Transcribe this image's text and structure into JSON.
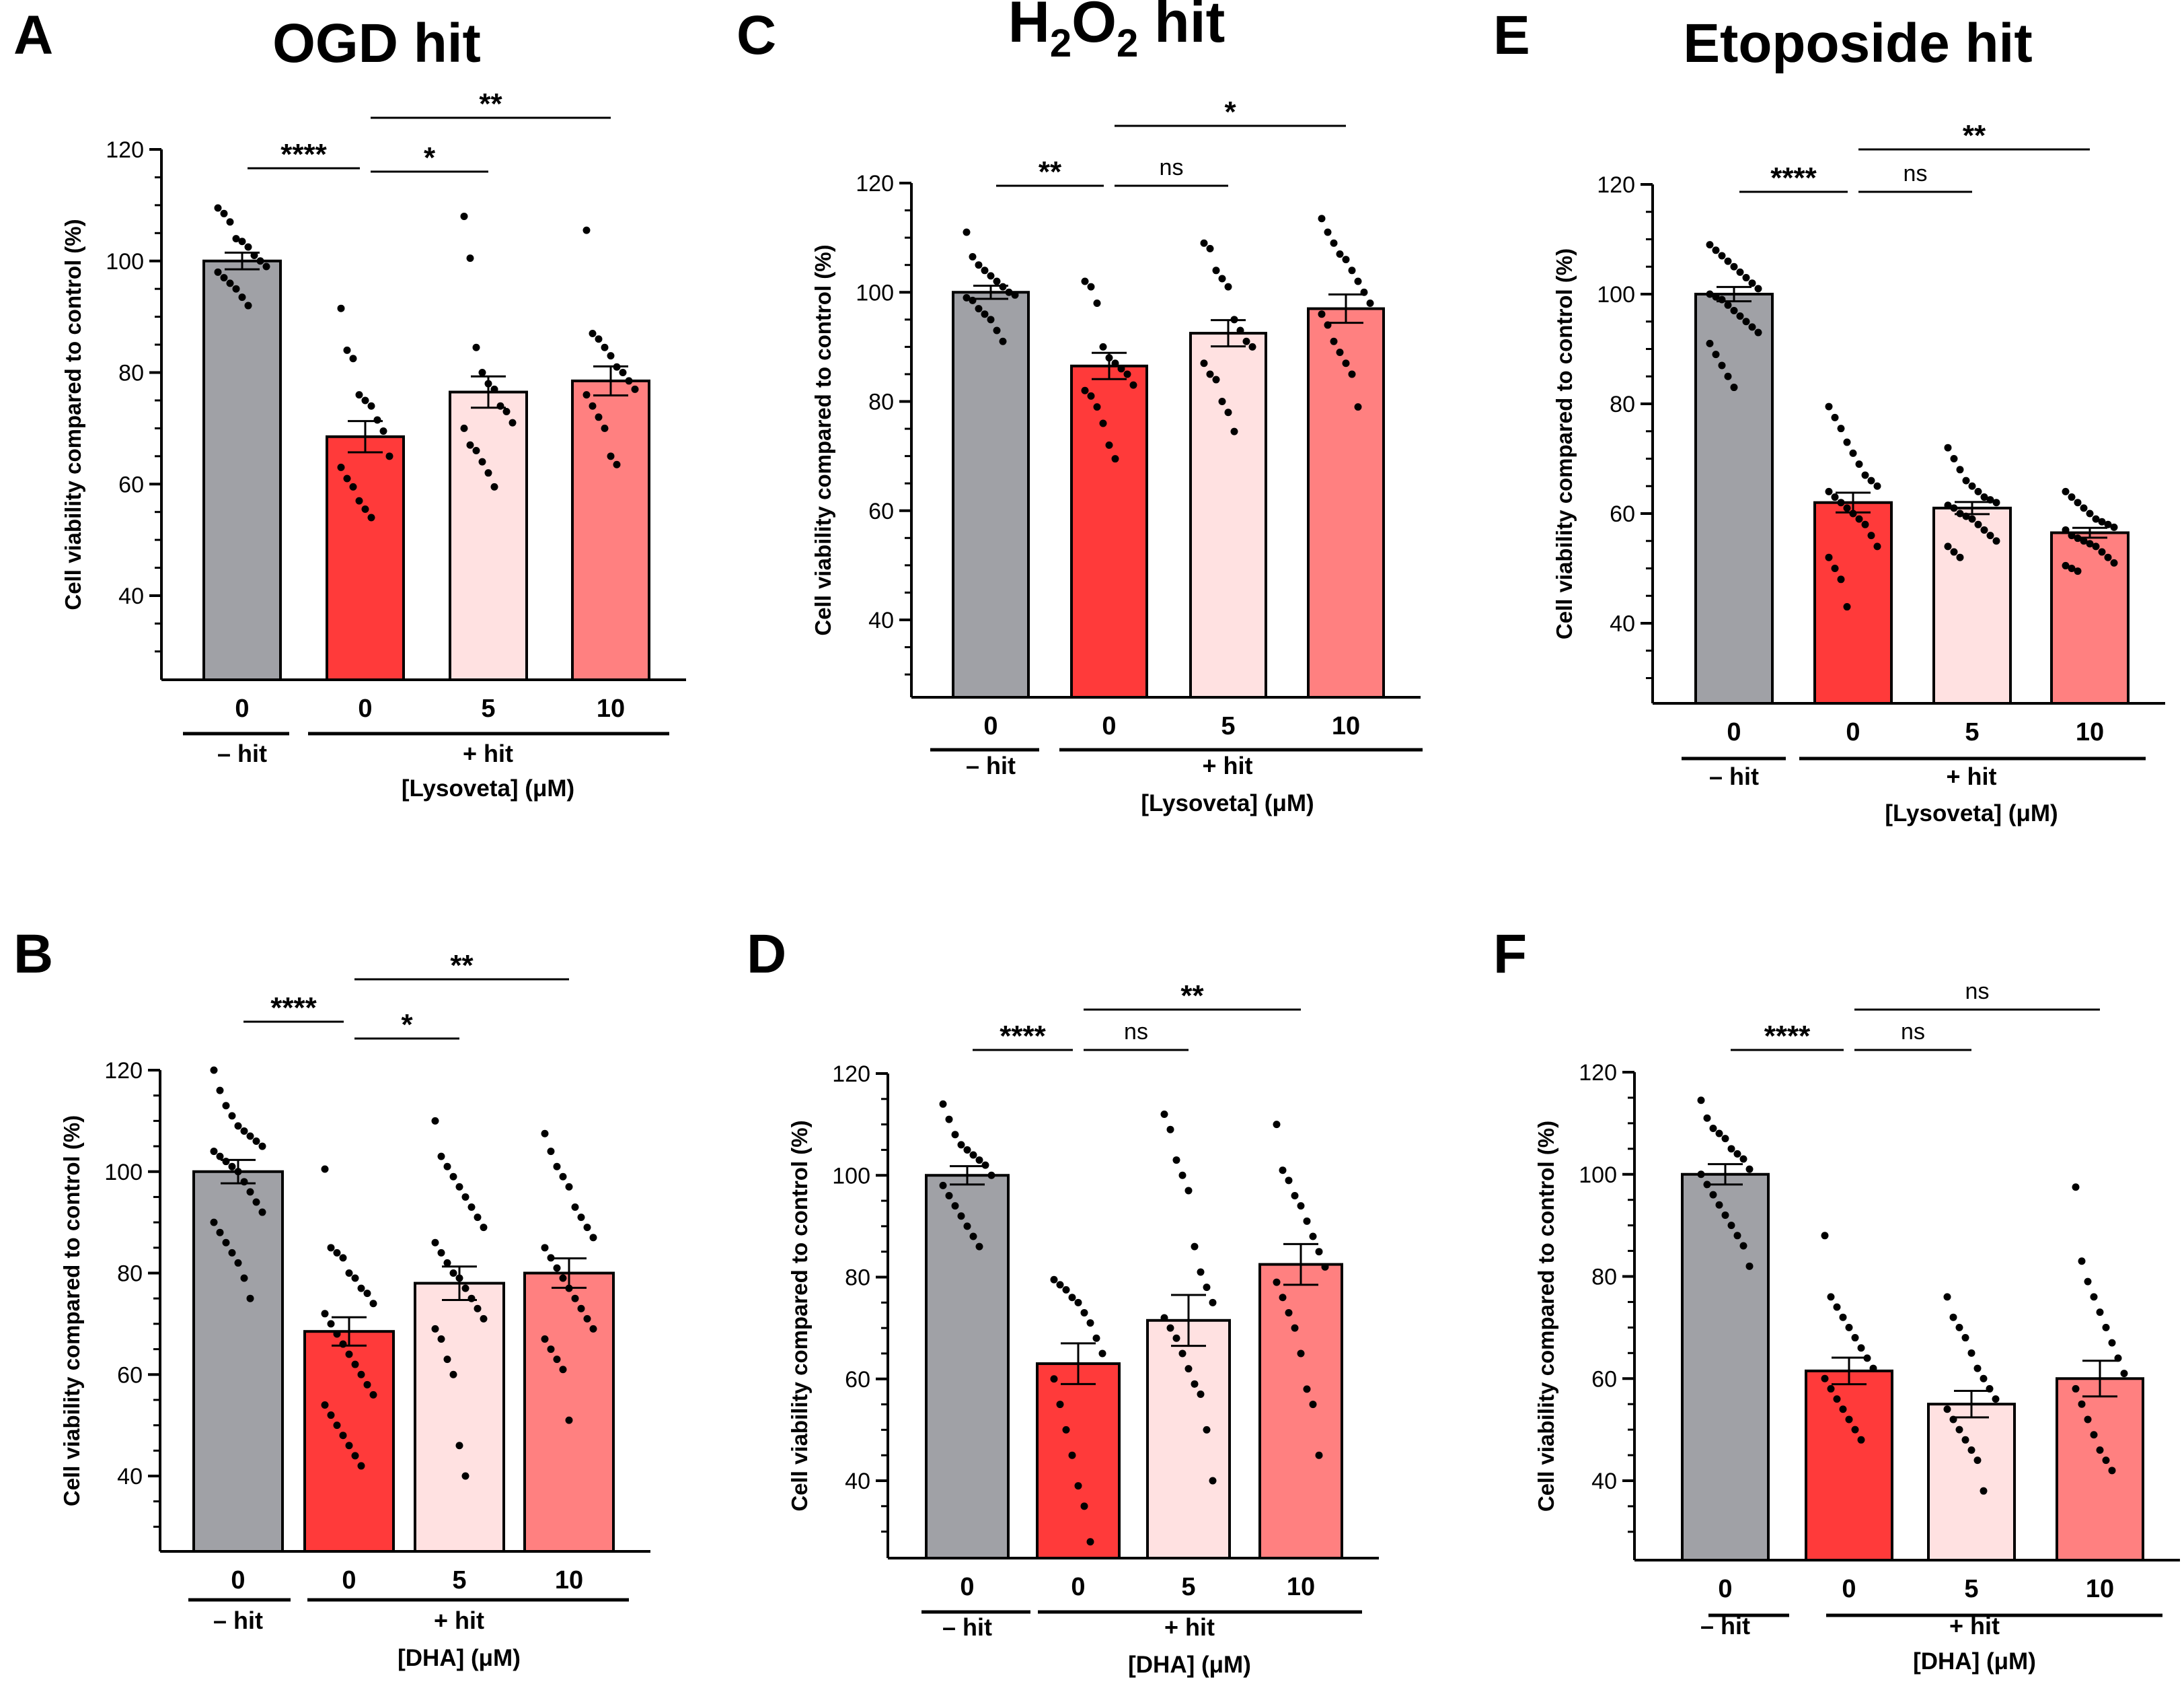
{
  "colors": {
    "control_bar": "#a0a1a6",
    "hit_bar": "#ff3a3a",
    "low_dose_bar": "#ffe1e1",
    "high_dose_bar": "#ff8080",
    "axis": "#000000"
  },
  "chart_data": [
    {
      "panel": "A",
      "type": "bar",
      "title": "OGD hit",
      "title_html": false,
      "ylabel": "Cell viability compared to control (%)",
      "ylim": [
        25,
        120
      ],
      "yticks": [
        40,
        60,
        80,
        100,
        120
      ],
      "categories": [
        "0",
        "0",
        "5",
        "10"
      ],
      "values": [
        100,
        68.5,
        76.5,
        78.5
      ],
      "sem": [
        1.5,
        2.8,
        2.8,
        2.6
      ],
      "points": [
        [
          109.5,
          108.5,
          107,
          104,
          103.5,
          102.5,
          101,
          100,
          99,
          98,
          97,
          96,
          95,
          93.5,
          92
        ],
        [
          91.5,
          84,
          82.5,
          76,
          75,
          74,
          71.5,
          69.5,
          65,
          63,
          61,
          59.5,
          57,
          55.5,
          54
        ],
        [
          108,
          100.5,
          84.5,
          80,
          78,
          77,
          74,
          73,
          71,
          70,
          67,
          66,
          64,
          62,
          59.5
        ],
        [
          105.5,
          87,
          86,
          84.5,
          83,
          81,
          80,
          78.5,
          77,
          76,
          74,
          72,
          70,
          65,
          63.5
        ]
      ],
      "group_labels": [
        "– hit",
        "+ hit"
      ],
      "xlabel": "[Lysoveta] (μM)",
      "comparisons": [
        {
          "from": 0,
          "to": 1,
          "label": "****"
        },
        {
          "from": 1,
          "to": 2,
          "label": "*"
        },
        {
          "from": 1,
          "to": 3,
          "label": "**"
        }
      ]
    },
    {
      "panel": "C",
      "type": "bar",
      "title": "H2O2 hit",
      "title_html": true,
      "ylabel": "Cell viability compared to control (%)",
      "ylim": [
        25,
        120
      ],
      "yticks": [
        40,
        60,
        80,
        100,
        120
      ],
      "categories": [
        "0",
        "0",
        "5",
        "10"
      ],
      "values": [
        100,
        86.5,
        92.5,
        97
      ],
      "sem": [
        1.2,
        2.4,
        2.4,
        2.6
      ],
      "points": [
        [
          111,
          106.5,
          105,
          104,
          103,
          102,
          101,
          100,
          99.5,
          99,
          98.5,
          97,
          96,
          95,
          93,
          91
        ],
        [
          102,
          101,
          98,
          90,
          88,
          87,
          86,
          85,
          83,
          82,
          81,
          79,
          76,
          72,
          69.5
        ],
        [
          109,
          108,
          104,
          102.5,
          101,
          95,
          93,
          91,
          90,
          87,
          85,
          84,
          80,
          78,
          74.5
        ],
        [
          113.5,
          111,
          109,
          107,
          106,
          104,
          102,
          100,
          98,
          96,
          94,
          91,
          89,
          87,
          85,
          79
        ]
      ],
      "group_labels": [
        "– hit",
        "+ hit"
      ],
      "xlabel": "[Lysoveta] (μM)",
      "comparisons": [
        {
          "from": 0,
          "to": 1,
          "label": "**"
        },
        {
          "from": 1,
          "to": 2,
          "label": "ns"
        },
        {
          "from": 1,
          "to": 3,
          "label": "*"
        }
      ]
    },
    {
      "panel": "E",
      "type": "bar",
      "title": "Etoposide hit",
      "title_html": false,
      "ylabel": "Cell viability compared to control (%)",
      "ylim": [
        25,
        120
      ],
      "yticks": [
        40,
        60,
        80,
        100,
        120
      ],
      "categories": [
        "0",
        "0",
        "5",
        "10"
      ],
      "values": [
        100,
        62,
        61,
        56.5
      ],
      "sem": [
        1.3,
        1.8,
        1.1,
        0.9
      ],
      "points": [
        [
          109,
          108,
          107,
          106,
          105,
          104,
          103,
          102,
          101,
          100,
          99.5,
          99,
          98,
          97,
          96,
          95,
          94,
          93,
          91,
          89,
          87,
          85,
          83
        ],
        [
          79.5,
          77.5,
          75.5,
          73,
          71,
          69,
          67,
          66,
          65,
          64,
          63,
          62,
          61,
          60,
          59,
          58,
          56,
          54,
          52,
          50,
          48,
          43
        ],
        [
          72,
          70,
          68,
          66,
          65,
          64,
          63,
          62.5,
          62,
          61.5,
          61,
          60,
          59.5,
          59,
          58,
          57,
          56,
          55,
          54,
          53,
          52
        ],
        [
          64,
          63,
          62,
          61,
          60,
          59,
          58.5,
          58,
          57.5,
          57,
          56,
          55.5,
          55,
          54.5,
          54,
          53,
          52,
          51,
          50.5,
          50,
          49.5
        ]
      ],
      "group_labels": [
        "– hit",
        "+ hit"
      ],
      "xlabel": "[Lysoveta] (μM)",
      "comparisons": [
        {
          "from": 0,
          "to": 1,
          "label": "****"
        },
        {
          "from": 1,
          "to": 2,
          "label": "ns"
        },
        {
          "from": 1,
          "to": 3,
          "label": "**"
        }
      ]
    },
    {
      "panel": "B",
      "type": "bar",
      "title": "",
      "title_html": false,
      "ylabel": "Cell viability compared to control (%)",
      "ylim": [
        25,
        120
      ],
      "yticks": [
        40,
        60,
        80,
        100,
        120
      ],
      "categories": [
        "0",
        "0",
        "5",
        "10"
      ],
      "values": [
        100,
        68.5,
        78,
        80
      ],
      "sem": [
        2.3,
        2.8,
        3.3,
        2.9
      ],
      "points": [
        [
          120,
          116,
          113,
          111,
          109,
          108,
          107,
          106,
          105,
          104,
          103,
          102,
          101,
          100,
          98,
          96,
          94,
          92,
          90,
          88,
          86,
          84,
          82,
          79,
          75
        ],
        [
          100.5,
          85,
          84,
          83,
          80,
          79,
          77,
          76,
          74,
          72,
          70,
          68,
          66,
          64,
          62,
          60,
          58,
          56,
          54,
          52,
          50,
          48,
          46,
          44,
          42
        ],
        [
          110,
          103,
          101,
          99,
          97,
          95,
          93,
          91,
          89,
          86,
          84,
          82,
          80,
          79,
          77,
          75,
          73,
          71,
          69,
          67,
          63,
          60,
          46,
          40
        ],
        [
          107.5,
          104,
          101,
          99,
          97,
          93,
          91,
          89,
          87,
          85,
          83,
          81,
          79,
          77,
          75,
          73,
          71,
          69,
          67,
          65,
          63,
          61,
          51
        ]
      ],
      "group_labels": [
        "– hit",
        "+ hit"
      ],
      "xlabel": "[DHA] (μM)",
      "comparisons": [
        {
          "from": 0,
          "to": 1,
          "label": "****"
        },
        {
          "from": 1,
          "to": 2,
          "label": "*"
        },
        {
          "from": 1,
          "to": 3,
          "label": "**"
        }
      ]
    },
    {
      "panel": "D",
      "type": "bar",
      "title": "",
      "title_html": false,
      "ylabel": "Cell viability compared to control (%)",
      "ylim": [
        25,
        120
      ],
      "yticks": [
        40,
        60,
        80,
        100,
        120
      ],
      "categories": [
        "0",
        "0",
        "5",
        "10"
      ],
      "values": [
        100,
        63,
        71.5,
        82.5
      ],
      "sem": [
        1.8,
        4.0,
        5.0,
        4.0
      ],
      "points": [
        [
          114,
          111,
          108,
          106,
          105,
          104,
          103,
          102,
          100,
          98,
          96,
          94,
          92,
          90,
          88,
          86
        ],
        [
          79.5,
          78.5,
          77.5,
          76,
          75,
          73,
          71,
          68,
          65,
          60,
          55,
          50,
          45,
          39,
          35,
          28
        ],
        [
          112,
          109,
          103,
          100,
          97,
          86,
          81,
          78,
          75,
          72,
          70,
          68,
          65,
          62,
          59,
          57,
          50,
          40
        ],
        [
          110,
          101,
          99,
          96,
          94,
          91,
          88,
          85,
          82,
          79,
          76,
          73,
          70,
          65,
          58,
          55,
          45
        ]
      ],
      "group_labels": [
        "– hit",
        "+ hit"
      ],
      "xlabel": "[DHA] (μM)",
      "comparisons": [
        {
          "from": 0,
          "to": 1,
          "label": "****"
        },
        {
          "from": 1,
          "to": 2,
          "label": "ns"
        },
        {
          "from": 1,
          "to": 3,
          "label": "**"
        }
      ]
    },
    {
      "panel": "F",
      "type": "bar",
      "title": "",
      "title_html": false,
      "ylabel": "Cell viability compared to control (%)",
      "ylim": [
        25,
        120
      ],
      "yticks": [
        40,
        60,
        80,
        100,
        120
      ],
      "categories": [
        "0",
        "0",
        "5",
        "10"
      ],
      "values": [
        100,
        61.5,
        55,
        60
      ],
      "sem": [
        2.0,
        2.6,
        2.6,
        3.5
      ],
      "points": [
        [
          114.5,
          111,
          109,
          108,
          107,
          105,
          104,
          103,
          101,
          100,
          98,
          96,
          94,
          92,
          90,
          88,
          86,
          82
        ],
        [
          88,
          76,
          74,
          72,
          70,
          68,
          66,
          64,
          62,
          60,
          58,
          56,
          54,
          52,
          50,
          48
        ],
        [
          76,
          72,
          70,
          68,
          65,
          62,
          60,
          58,
          56,
          54,
          52,
          50,
          48,
          46,
          44,
          38
        ],
        [
          97.5,
          83,
          79,
          76,
          73,
          70,
          67,
          64,
          61,
          58,
          55,
          52,
          49,
          46,
          44,
          42
        ]
      ],
      "group_labels": [
        "– hit",
        "+ hit"
      ],
      "xlabel": "[DHA] (μM)",
      "comparisons": [
        {
          "from": 0,
          "to": 1,
          "label": "****"
        },
        {
          "from": 1,
          "to": 2,
          "label": "ns"
        },
        {
          "from": 1,
          "to": 3,
          "label": "ns"
        }
      ]
    }
  ]
}
